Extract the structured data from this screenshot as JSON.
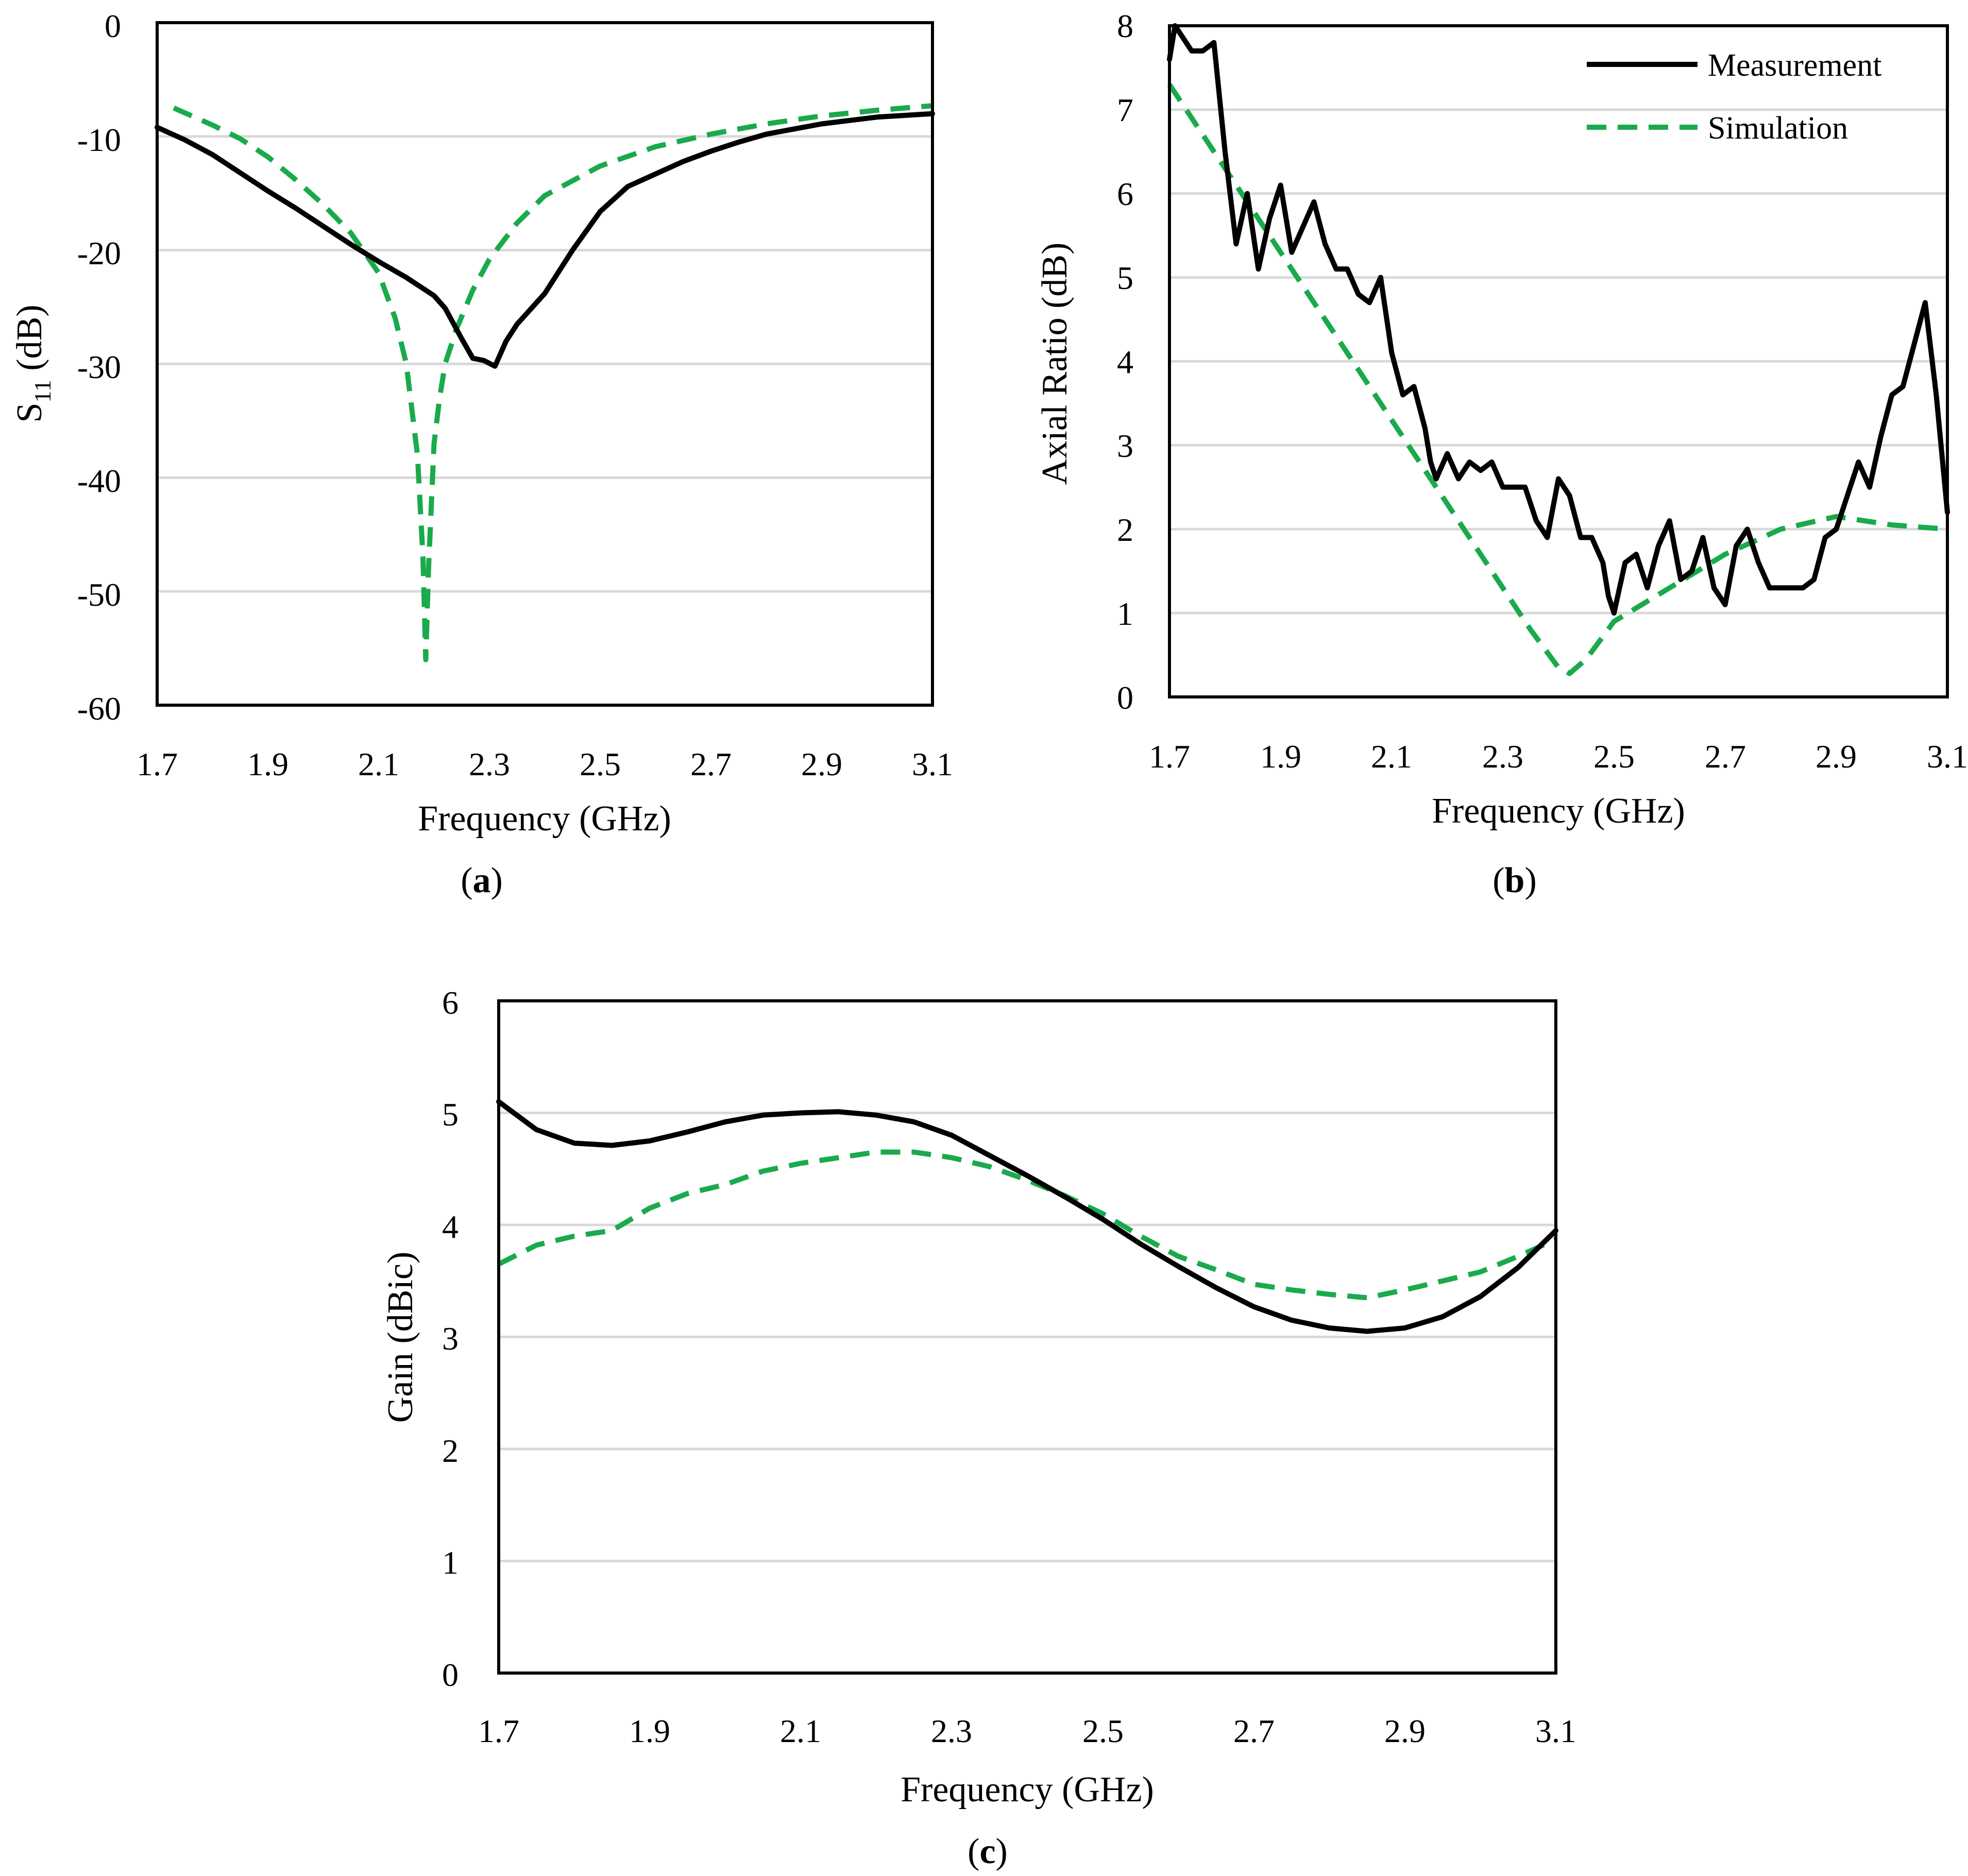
{
  "legend": {
    "measurement": "Measurement",
    "simulation": "Simulation"
  },
  "colors": {
    "measurement": "#000000",
    "simulation": "#1aaa4b",
    "grid": "#d9d9d9"
  },
  "chart_data": [
    {
      "id": "a",
      "type": "line",
      "sub_label": "(a)",
      "sub_label_letter": "a",
      "xlabel": "Frequency (GHz)",
      "ylabel_main": "S",
      "ylabel_sub": "11",
      "ylabel_rest": " (dB)",
      "xlim": [
        1.7,
        3.1
      ],
      "ylim": [
        -60,
        0
      ],
      "xticks": [
        "1.7",
        "1.9",
        "2.1",
        "2.3",
        "2.5",
        "2.7",
        "2.9",
        "3.1"
      ],
      "yticks": [
        "0",
        "-10",
        "-20",
        "-30",
        "-40",
        "-50",
        "-60"
      ],
      "series": [
        {
          "name": "Measurement",
          "x": [
            1.7,
            1.75,
            1.8,
            1.85,
            1.9,
            1.95,
            2.0,
            2.05,
            2.1,
            2.15,
            2.2,
            2.22,
            2.25,
            2.27,
            2.29,
            2.31,
            2.33,
            2.35,
            2.4,
            2.45,
            2.5,
            2.55,
            2.6,
            2.65,
            2.7,
            2.75,
            2.8,
            2.9,
            3.0,
            3.1
          ],
          "y": [
            -9.2,
            -10.3,
            -11.6,
            -13.2,
            -14.8,
            -16.3,
            -17.9,
            -19.5,
            -21.0,
            -22.4,
            -24.0,
            -25.1,
            -27.8,
            -29.5,
            -29.7,
            -30.2,
            -28.0,
            -26.5,
            -23.8,
            -20.0,
            -16.6,
            -14.4,
            -13.3,
            -12.2,
            -11.3,
            -10.5,
            -9.8,
            -8.9,
            -8.3,
            -8.0
          ]
        },
        {
          "name": "Simulation",
          "x": [
            1.73,
            1.8,
            1.85,
            1.9,
            1.95,
            2.0,
            2.05,
            2.1,
            2.13,
            2.15,
            2.17,
            2.18,
            2.185,
            2.19,
            2.2,
            2.21,
            2.22,
            2.24,
            2.27,
            2.3,
            2.35,
            2.4,
            2.5,
            2.6,
            2.7,
            2.8,
            2.9,
            3.0,
            3.1
          ],
          "y": [
            -7.5,
            -9.0,
            -10.2,
            -11.8,
            -13.8,
            -16.0,
            -18.5,
            -22.0,
            -26.0,
            -30.0,
            -38.0,
            -47.0,
            -56.0,
            -48.0,
            -37.0,
            -33.0,
            -30.0,
            -27.0,
            -23.5,
            -20.8,
            -17.6,
            -15.2,
            -12.6,
            -10.9,
            -9.8,
            -8.9,
            -8.2,
            -7.7,
            -7.3
          ]
        }
      ]
    },
    {
      "id": "b",
      "type": "line",
      "sub_label": "(b)",
      "sub_label_letter": "b",
      "xlabel": "Frequency (GHz)",
      "ylabel": "Axial Ratio (dB)",
      "xlim": [
        1.7,
        3.1
      ],
      "ylim": [
        0,
        8
      ],
      "xticks": [
        "1.7",
        "1.9",
        "2.1",
        "2.3",
        "2.5",
        "2.7",
        "2.9",
        "3.1"
      ],
      "yticks": [
        "8",
        "7",
        "6",
        "5",
        "4",
        "3",
        "2",
        "1",
        "0"
      ],
      "legend_position": "top-right",
      "series": [
        {
          "name": "Measurement",
          "x": [
            1.7,
            1.71,
            1.72,
            1.74,
            1.76,
            1.78,
            1.8,
            1.82,
            1.84,
            1.86,
            1.88,
            1.9,
            1.92,
            1.94,
            1.96,
            1.98,
            2.0,
            2.02,
            2.04,
            2.06,
            2.08,
            2.1,
            2.12,
            2.14,
            2.16,
            2.17,
            2.18,
            2.2,
            2.22,
            2.24,
            2.26,
            2.28,
            2.3,
            2.32,
            2.34,
            2.36,
            2.38,
            2.4,
            2.42,
            2.44,
            2.46,
            2.48,
            2.49,
            2.5,
            2.52,
            2.54,
            2.56,
            2.58,
            2.6,
            2.62,
            2.64,
            2.66,
            2.68,
            2.7,
            2.72,
            2.74,
            2.76,
            2.78,
            2.8,
            2.82,
            2.84,
            2.86,
            2.88,
            2.9,
            2.92,
            2.94,
            2.96,
            2.98,
            3.0,
            3.02,
            3.04,
            3.06,
            3.08,
            3.1
          ],
          "y": [
            7.6,
            8.0,
            7.9,
            7.7,
            7.7,
            7.8,
            6.5,
            5.4,
            6.0,
            5.1,
            5.7,
            6.1,
            5.3,
            5.6,
            5.9,
            5.4,
            5.1,
            5.1,
            4.8,
            4.7,
            5.0,
            4.1,
            3.6,
            3.7,
            3.2,
            2.8,
            2.6,
            2.9,
            2.6,
            2.8,
            2.7,
            2.8,
            2.5,
            2.5,
            2.5,
            2.1,
            1.9,
            2.6,
            2.4,
            1.9,
            1.9,
            1.6,
            1.2,
            1.0,
            1.6,
            1.7,
            1.3,
            1.8,
            2.1,
            1.4,
            1.5,
            1.9,
            1.3,
            1.1,
            1.8,
            2.0,
            1.6,
            1.3,
            1.3,
            1.3,
            1.3,
            1.4,
            1.9,
            2.0,
            2.4,
            2.8,
            2.5,
            3.1,
            3.6,
            3.7,
            4.2,
            4.7,
            3.6,
            2.2
          ]
        },
        {
          "name": "Simulation",
          "x": [
            1.7,
            1.8,
            1.9,
            2.0,
            2.1,
            2.2,
            2.3,
            2.35,
            2.4,
            2.42,
            2.45,
            2.5,
            2.6,
            2.7,
            2.8,
            2.9,
            3.0,
            3.1
          ],
          "y": [
            7.3,
            6.3,
            5.3,
            4.3,
            3.3,
            2.3,
            1.3,
            0.8,
            0.35,
            0.28,
            0.45,
            0.9,
            1.3,
            1.7,
            2.0,
            2.15,
            2.05,
            2.0
          ]
        }
      ]
    },
    {
      "id": "c",
      "type": "line",
      "sub_label": "(c)",
      "sub_label_letter": "c",
      "xlabel": "Frequency (GHz)",
      "ylabel": "Gain (dBic)",
      "xlim": [
        1.7,
        3.1
      ],
      "ylim": [
        0,
        6
      ],
      "xticks": [
        "1.7",
        "1.9",
        "2.1",
        "2.3",
        "2.5",
        "2.7",
        "2.9",
        "3.1"
      ],
      "yticks": [
        "6",
        "5",
        "4",
        "3",
        "2",
        "1",
        "0"
      ],
      "series": [
        {
          "name": "Measurement",
          "x": [
            1.7,
            1.75,
            1.8,
            1.85,
            1.9,
            1.95,
            2.0,
            2.05,
            2.1,
            2.15,
            2.2,
            2.25,
            2.3,
            2.35,
            2.4,
            2.45,
            2.5,
            2.55,
            2.6,
            2.65,
            2.7,
            2.75,
            2.8,
            2.85,
            2.9,
            2.95,
            3.0,
            3.05,
            3.1
          ],
          "y": [
            5.1,
            4.85,
            4.73,
            4.71,
            4.75,
            4.83,
            4.92,
            4.98,
            5.0,
            5.01,
            4.98,
            4.92,
            4.8,
            4.62,
            4.44,
            4.25,
            4.05,
            3.83,
            3.63,
            3.44,
            3.27,
            3.15,
            3.08,
            3.05,
            3.08,
            3.18,
            3.36,
            3.62,
            3.95
          ]
        },
        {
          "name": "Simulation",
          "x": [
            1.7,
            1.75,
            1.8,
            1.85,
            1.9,
            1.95,
            2.0,
            2.05,
            2.1,
            2.15,
            2.2,
            2.25,
            2.3,
            2.35,
            2.4,
            2.45,
            2.5,
            2.55,
            2.6,
            2.65,
            2.7,
            2.75,
            2.8,
            2.85,
            2.9,
            2.95,
            3.0,
            3.05,
            3.1
          ],
          "y": [
            3.65,
            3.82,
            3.9,
            3.95,
            4.15,
            4.28,
            4.36,
            4.48,
            4.55,
            4.6,
            4.65,
            4.65,
            4.6,
            4.52,
            4.4,
            4.26,
            4.1,
            3.9,
            3.72,
            3.6,
            3.47,
            3.42,
            3.38,
            3.35,
            3.42,
            3.5,
            3.58,
            3.72,
            3.87
          ]
        }
      ]
    }
  ]
}
